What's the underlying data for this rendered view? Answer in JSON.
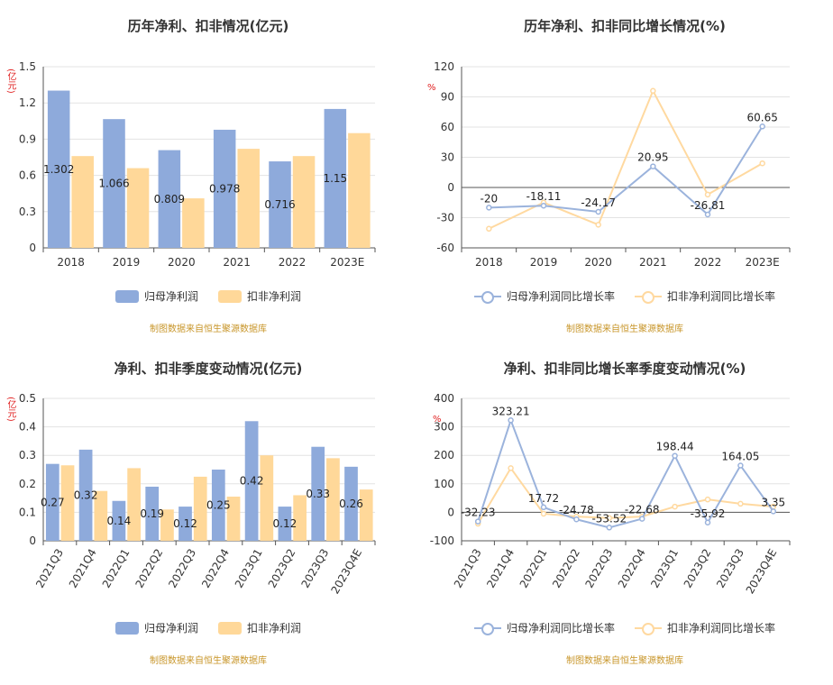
{
  "colors": {
    "net": "#8eaadb",
    "deducted": "#ffd899",
    "net_line": "#9bb3dc",
    "deducted_line": "#ffd9a0",
    "axis": "#555",
    "grid": "#e3e3e3"
  },
  "source_note": "制图数据来自恒生聚源数据库",
  "legend": {
    "net": "归母净利润",
    "deducted": "扣非净利润",
    "net_growth": "归母净利润同比增长率",
    "deducted_growth": "扣非净利润同比增长率"
  },
  "chart_data": [
    {
      "type": "bar",
      "title": "历年净利、扣非情况(亿元)",
      "ylabel": "(亿元)",
      "categories": [
        "2018",
        "2019",
        "2020",
        "2021",
        "2022",
        "2023E"
      ],
      "ylim": [
        0,
        1.5
      ],
      "yticks": [
        0,
        0.3,
        0.6,
        0.9,
        1.2,
        1.5
      ],
      "series": [
        {
          "name": "归母净利润",
          "values": [
            1.302,
            1.066,
            0.809,
            0.978,
            0.716,
            1.15
          ],
          "labels": [
            "1.302",
            "1.066",
            "0.809",
            "0.978",
            "0.716",
            "1.15"
          ]
        },
        {
          "name": "扣非净利润",
          "values": [
            0.76,
            0.66,
            0.41,
            0.82,
            0.76,
            0.95
          ]
        }
      ]
    },
    {
      "type": "line",
      "title": "历年净利、扣非同比增长情况(%)",
      "ylabel": "%",
      "categories": [
        "2018",
        "2019",
        "2020",
        "2021",
        "2022",
        "2023E"
      ],
      "ylim": [
        -60,
        120
      ],
      "yticks": [
        -60,
        -30,
        0,
        30,
        60,
        90,
        120
      ],
      "series": [
        {
          "name": "归母净利润同比增长率",
          "values": [
            -20,
            -18.11,
            -24.17,
            20.95,
            -26.81,
            60.65
          ],
          "labels": [
            "-20",
            "-18.11",
            "-24.17",
            "20.95",
            "-26.81",
            "60.65"
          ]
        },
        {
          "name": "扣非净利润同比增长率",
          "values": [
            -41,
            -15,
            -37,
            96,
            -7,
            24
          ]
        }
      ]
    },
    {
      "type": "bar",
      "title": "净利、扣非季度变动情况(亿元)",
      "ylabel": "(亿元)",
      "categories": [
        "2021Q3",
        "2021Q4",
        "2022Q1",
        "2022Q2",
        "2022Q3",
        "2022Q4",
        "2023Q1",
        "2023Q2",
        "2023Q3",
        "2023Q4E"
      ],
      "ylim": [
        0,
        0.5
      ],
      "yticks": [
        0,
        0.1,
        0.2,
        0.3,
        0.4,
        0.5
      ],
      "series": [
        {
          "name": "归母净利润",
          "values": [
            0.27,
            0.32,
            0.14,
            0.19,
            0.12,
            0.25,
            0.42,
            0.12,
            0.33,
            0.26
          ],
          "labels": [
            "0.27",
            "0.32",
            "0.14",
            "0.19",
            "0.12",
            "0.25",
            "0.42",
            "0.12",
            "0.33",
            "0.26"
          ]
        },
        {
          "name": "扣非净利润",
          "values": [
            0.265,
            0.175,
            0.255,
            0.11,
            0.225,
            0.155,
            0.3,
            0.16,
            0.29,
            0.18
          ]
        }
      ]
    },
    {
      "type": "line",
      "title": "净利、扣非同比增长率季度变动情况(%)",
      "ylabel": "%",
      "categories": [
        "2021Q3",
        "2021Q4",
        "2022Q1",
        "2022Q2",
        "2022Q3",
        "2022Q4",
        "2023Q1",
        "2023Q2",
        "2023Q3",
        "2023Q4E"
      ],
      "ylim": [
        -100,
        400
      ],
      "yticks": [
        -100,
        0,
        100,
        200,
        300,
        400
      ],
      "series": [
        {
          "name": "归母净利润同比增长率",
          "values": [
            -32.23,
            323.21,
            17.72,
            -24.78,
            -53.52,
            -22.68,
            198.44,
            -35.92,
            164.05,
            3.35
          ],
          "labels": [
            "-32.23",
            "323.21",
            "17.72",
            "-24.78",
            "-53.52",
            "-22.68",
            "198.44",
            "-35.92",
            "164.05",
            "3.35"
          ]
        },
        {
          "name": "扣非净利润同比增长率",
          "values": [
            -40,
            155,
            -5,
            -15,
            -20,
            -15,
            20,
            45,
            30,
            20
          ]
        }
      ]
    }
  ]
}
